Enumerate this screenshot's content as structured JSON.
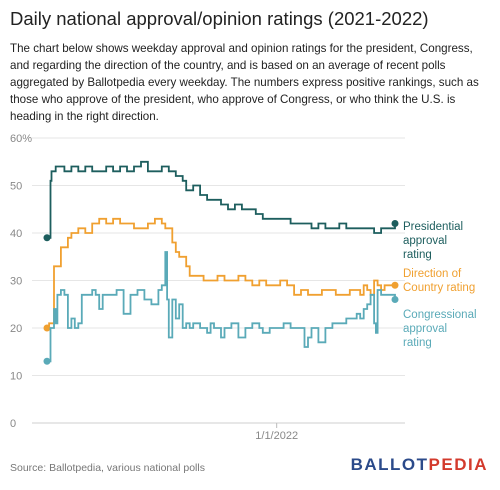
{
  "title": "Daily national approval/opinion ratings (2021-2022)",
  "description": "The chart below shows weekday approval and opinion ratings for the president, Congress, and regarding the direction of the country, and is based on an average of recent polls aggregated by Ballotpedia every weekday. The numbers express positive rankings, such as those who approve of the president, who approve of Congress, or who think the U.S. is heading in the right direction.",
  "source": "Source: Ballotpedia, various national polls",
  "logo": {
    "part1": "BALLOT",
    "part2": "PEDIA"
  },
  "colors": {
    "presidential": "#1d5e5e",
    "direction": "#f0a030",
    "congressional": "#5aaab8",
    "grid": "#e6e6e6"
  },
  "chart_data": {
    "type": "line",
    "y_ticks": [
      "60%",
      "50",
      "40",
      "30",
      "20",
      "10",
      "0"
    ],
    "x_tick_label": "1/1/2022",
    "x_tick_position": 0.66,
    "ylim": [
      0,
      60
    ],
    "series": [
      {
        "key": "presidential",
        "name": "Presidential approval rating",
        "label_lines": [
          "Presidential",
          "approval",
          "rating"
        ],
        "points": [
          [
            0.0,
            39
          ],
          [
            0.006,
            39
          ],
          [
            0.01,
            51
          ],
          [
            0.013,
            53
          ],
          [
            0.025,
            54
          ],
          [
            0.05,
            53
          ],
          [
            0.07,
            54
          ],
          [
            0.09,
            53
          ],
          [
            0.11,
            54
          ],
          [
            0.13,
            53
          ],
          [
            0.15,
            53
          ],
          [
            0.17,
            54
          ],
          [
            0.19,
            53
          ],
          [
            0.21,
            54
          ],
          [
            0.23,
            53
          ],
          [
            0.25,
            54
          ],
          [
            0.27,
            55
          ],
          [
            0.29,
            53
          ],
          [
            0.31,
            53
          ],
          [
            0.33,
            54
          ],
          [
            0.35,
            53
          ],
          [
            0.37,
            52
          ],
          [
            0.39,
            51
          ],
          [
            0.4,
            49
          ],
          [
            0.42,
            50
          ],
          [
            0.44,
            48
          ],
          [
            0.46,
            47
          ],
          [
            0.48,
            47
          ],
          [
            0.5,
            46
          ],
          [
            0.52,
            45
          ],
          [
            0.54,
            46
          ],
          [
            0.56,
            45
          ],
          [
            0.58,
            45
          ],
          [
            0.6,
            44
          ],
          [
            0.62,
            43
          ],
          [
            0.64,
            43
          ],
          [
            0.66,
            43
          ],
          [
            0.68,
            43
          ],
          [
            0.7,
            42
          ],
          [
            0.72,
            42
          ],
          [
            0.74,
            42
          ],
          [
            0.76,
            41
          ],
          [
            0.78,
            42
          ],
          [
            0.8,
            41
          ],
          [
            0.82,
            41
          ],
          [
            0.84,
            42
          ],
          [
            0.86,
            41
          ],
          [
            0.88,
            41
          ],
          [
            0.9,
            41
          ],
          [
            0.92,
            41
          ],
          [
            0.94,
            40
          ],
          [
            0.96,
            41
          ],
          [
            1.0,
            42
          ]
        ]
      },
      {
        "key": "direction",
        "name": "Direction of Country rating",
        "label_lines": [
          "Direction of",
          "Country rating"
        ],
        "points": [
          [
            0.0,
            20
          ],
          [
            0.006,
            21
          ],
          [
            0.02,
            33
          ],
          [
            0.04,
            37
          ],
          [
            0.06,
            39
          ],
          [
            0.07,
            40
          ],
          [
            0.09,
            41
          ],
          [
            0.11,
            40
          ],
          [
            0.13,
            42
          ],
          [
            0.15,
            43
          ],
          [
            0.17,
            42
          ],
          [
            0.19,
            43
          ],
          [
            0.21,
            42
          ],
          [
            0.23,
            42
          ],
          [
            0.25,
            41
          ],
          [
            0.27,
            41
          ],
          [
            0.29,
            42
          ],
          [
            0.31,
            43
          ],
          [
            0.33,
            42
          ],
          [
            0.34,
            41
          ],
          [
            0.36,
            38
          ],
          [
            0.37,
            36
          ],
          [
            0.38,
            35
          ],
          [
            0.4,
            33
          ],
          [
            0.41,
            31
          ],
          [
            0.43,
            31
          ],
          [
            0.45,
            30
          ],
          [
            0.47,
            30
          ],
          [
            0.49,
            31
          ],
          [
            0.51,
            30
          ],
          [
            0.53,
            30
          ],
          [
            0.55,
            31
          ],
          [
            0.57,
            30
          ],
          [
            0.59,
            29
          ],
          [
            0.61,
            30
          ],
          [
            0.63,
            29
          ],
          [
            0.65,
            29
          ],
          [
            0.67,
            30
          ],
          [
            0.69,
            29
          ],
          [
            0.71,
            27
          ],
          [
            0.73,
            28
          ],
          [
            0.75,
            27
          ],
          [
            0.77,
            27
          ],
          [
            0.79,
            28
          ],
          [
            0.81,
            28
          ],
          [
            0.83,
            27
          ],
          [
            0.85,
            27
          ],
          [
            0.87,
            28
          ],
          [
            0.89,
            28
          ],
          [
            0.9,
            27
          ],
          [
            0.91,
            29
          ],
          [
            0.92,
            28
          ],
          [
            0.93,
            27
          ],
          [
            0.94,
            30
          ],
          [
            0.95,
            29
          ],
          [
            0.96,
            28
          ],
          [
            0.97,
            29
          ],
          [
            1.0,
            29
          ]
        ]
      },
      {
        "key": "congressional",
        "name": "Congressional approval rating",
        "label_lines": [
          "Congressional",
          "approval",
          "rating"
        ],
        "points": [
          [
            0.0,
            13
          ],
          [
            0.006,
            13
          ],
          [
            0.01,
            20
          ],
          [
            0.02,
            24
          ],
          [
            0.025,
            21
          ],
          [
            0.03,
            27
          ],
          [
            0.04,
            28
          ],
          [
            0.05,
            27
          ],
          [
            0.06,
            20
          ],
          [
            0.07,
            22
          ],
          [
            0.08,
            20
          ],
          [
            0.09,
            21
          ],
          [
            0.1,
            27
          ],
          [
            0.12,
            27
          ],
          [
            0.13,
            28
          ],
          [
            0.14,
            27
          ],
          [
            0.15,
            24
          ],
          [
            0.16,
            27
          ],
          [
            0.18,
            27
          ],
          [
            0.2,
            28
          ],
          [
            0.22,
            23
          ],
          [
            0.24,
            27
          ],
          [
            0.26,
            28
          ],
          [
            0.28,
            26
          ],
          [
            0.3,
            25
          ],
          [
            0.32,
            28
          ],
          [
            0.33,
            29
          ],
          [
            0.34,
            36
          ],
          [
            0.345,
            26
          ],
          [
            0.35,
            18
          ],
          [
            0.36,
            26
          ],
          [
            0.37,
            22
          ],
          [
            0.38,
            25
          ],
          [
            0.39,
            20
          ],
          [
            0.4,
            21
          ],
          [
            0.41,
            20
          ],
          [
            0.42,
            21
          ],
          [
            0.44,
            20
          ],
          [
            0.46,
            19
          ],
          [
            0.47,
            21
          ],
          [
            0.48,
            20
          ],
          [
            0.5,
            18
          ],
          [
            0.51,
            20
          ],
          [
            0.53,
            21
          ],
          [
            0.55,
            18
          ],
          [
            0.57,
            20
          ],
          [
            0.59,
            21
          ],
          [
            0.61,
            20
          ],
          [
            0.62,
            19
          ],
          [
            0.64,
            20
          ],
          [
            0.66,
            20
          ],
          [
            0.68,
            21
          ],
          [
            0.7,
            20
          ],
          [
            0.72,
            20
          ],
          [
            0.74,
            16
          ],
          [
            0.75,
            18
          ],
          [
            0.76,
            20
          ],
          [
            0.78,
            17
          ],
          [
            0.8,
            20
          ],
          [
            0.82,
            21
          ],
          [
            0.84,
            21
          ],
          [
            0.86,
            22
          ],
          [
            0.88,
            22
          ],
          [
            0.89,
            23
          ],
          [
            0.9,
            22
          ],
          [
            0.91,
            24
          ],
          [
            0.92,
            25
          ],
          [
            0.93,
            27
          ],
          [
            0.94,
            21
          ],
          [
            0.945,
            19
          ],
          [
            0.95,
            28
          ],
          [
            0.96,
            27
          ],
          [
            1.0,
            26
          ]
        ]
      }
    ]
  }
}
